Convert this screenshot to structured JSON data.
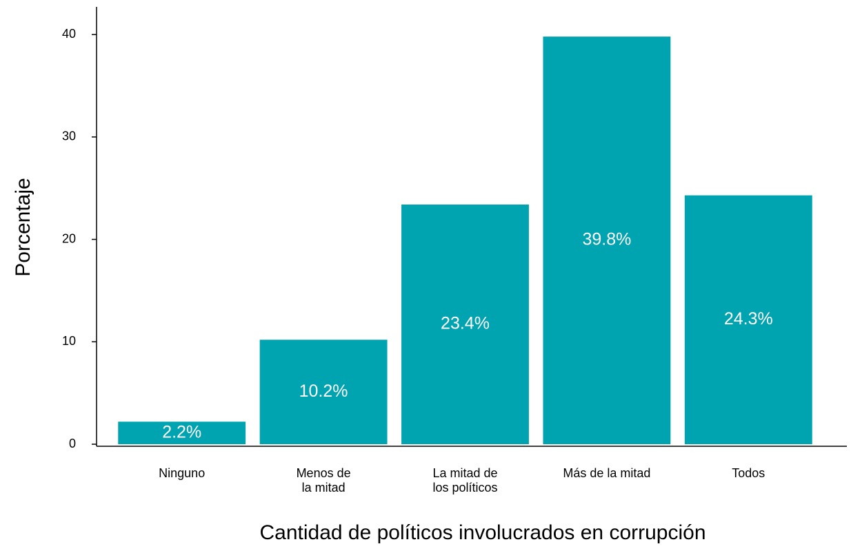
{
  "chart_data": {
    "type": "bar",
    "x_label": "Cantidad de políticos involucrados en corrupción",
    "y_label": "Porcentaje",
    "categories": [
      [
        "Ninguno"
      ],
      [
        "Menos de",
        "la mitad"
      ],
      [
        "La mitad de",
        "los políticos"
      ],
      [
        "Más de la mitad"
      ],
      [
        "Todos"
      ]
    ],
    "values": [
      2.2,
      10.2,
      23.4,
      39.8,
      24.3
    ],
    "value_labels": [
      "2.2%",
      "10.2%",
      "23.4%",
      "39.8%",
      "24.3%"
    ],
    "color": "#00a3b0",
    "ylim": [
      -0.2,
      42.7
    ],
    "yticks": [
      0,
      10,
      20,
      30,
      40
    ],
    "grid": false
  }
}
